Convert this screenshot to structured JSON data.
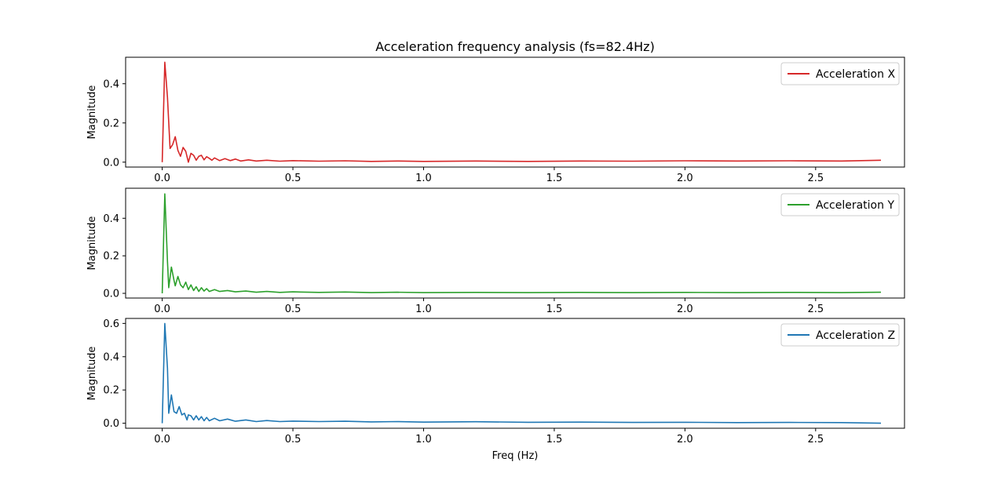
{
  "chart_data": {
    "type": "line",
    "title": "Acceleration frequency analysis (fs=82.4Hz)",
    "xlabel": "Freq (Hz)",
    "xlim": [
      -0.14,
      2.84
    ],
    "xticks": [
      "0.0",
      "0.5",
      "1.0",
      "1.5",
      "2.0",
      "2.5"
    ],
    "legend_position": "top-right",
    "grid": false,
    "subplots": [
      {
        "ylabel": "Magnitude",
        "ylim": [
          -0.025,
          0.535
        ],
        "yticks": [
          "0.0",
          "0.2",
          "0.4"
        ],
        "series": [
          {
            "name": "Acceleration X",
            "color": "#d62728",
            "points": [
              [
                0.0,
                0.0
              ],
              [
                0.01,
                0.51
              ],
              [
                0.02,
                0.33
              ],
              [
                0.03,
                0.07
              ],
              [
                0.04,
                0.09
              ],
              [
                0.05,
                0.13
              ],
              [
                0.06,
                0.06
              ],
              [
                0.07,
                0.03
              ],
              [
                0.08,
                0.075
              ],
              [
                0.09,
                0.055
              ],
              [
                0.1,
                0.0
              ],
              [
                0.11,
                0.045
              ],
              [
                0.12,
                0.035
              ],
              [
                0.13,
                0.01
              ],
              [
                0.14,
                0.03
              ],
              [
                0.15,
                0.035
              ],
              [
                0.16,
                0.012
              ],
              [
                0.17,
                0.028
              ],
              [
                0.18,
                0.02
              ],
              [
                0.19,
                0.01
              ],
              [
                0.2,
                0.022
              ],
              [
                0.22,
                0.008
              ],
              [
                0.24,
                0.018
              ],
              [
                0.26,
                0.008
              ],
              [
                0.28,
                0.016
              ],
              [
                0.3,
                0.006
              ],
              [
                0.33,
                0.012
              ],
              [
                0.36,
                0.006
              ],
              [
                0.4,
                0.01
              ],
              [
                0.45,
                0.005
              ],
              [
                0.5,
                0.008
              ],
              [
                0.6,
                0.005
              ],
              [
                0.7,
                0.007
              ],
              [
                0.8,
                0.004
              ],
              [
                0.9,
                0.006
              ],
              [
                1.0,
                0.004
              ],
              [
                1.2,
                0.006
              ],
              [
                1.4,
                0.004
              ],
              [
                1.6,
                0.006
              ],
              [
                1.8,
                0.005
              ],
              [
                2.0,
                0.007
              ],
              [
                2.2,
                0.006
              ],
              [
                2.4,
                0.007
              ],
              [
                2.6,
                0.006
              ],
              [
                2.75,
                0.01
              ]
            ]
          }
        ]
      },
      {
        "ylabel": "Magnitude",
        "ylim": [
          -0.025,
          0.56
        ],
        "yticks": [
          "0.0",
          "0.2",
          "0.4"
        ],
        "series": [
          {
            "name": "Acceleration Y",
            "color": "#2ca02c",
            "points": [
              [
                0.0,
                0.0
              ],
              [
                0.01,
                0.53
              ],
              [
                0.02,
                0.17
              ],
              [
                0.025,
                0.03
              ],
              [
                0.035,
                0.14
              ],
              [
                0.045,
                0.07
              ],
              [
                0.05,
                0.04
              ],
              [
                0.06,
                0.09
              ],
              [
                0.07,
                0.045
              ],
              [
                0.08,
                0.03
              ],
              [
                0.09,
                0.06
              ],
              [
                0.1,
                0.02
              ],
              [
                0.11,
                0.045
              ],
              [
                0.12,
                0.015
              ],
              [
                0.13,
                0.035
              ],
              [
                0.14,
                0.01
              ],
              [
                0.15,
                0.03
              ],
              [
                0.16,
                0.012
              ],
              [
                0.17,
                0.025
              ],
              [
                0.18,
                0.01
              ],
              [
                0.2,
                0.02
              ],
              [
                0.22,
                0.01
              ],
              [
                0.25,
                0.015
              ],
              [
                0.28,
                0.008
              ],
              [
                0.32,
                0.012
              ],
              [
                0.36,
                0.006
              ],
              [
                0.4,
                0.01
              ],
              [
                0.45,
                0.005
              ],
              [
                0.5,
                0.008
              ],
              [
                0.6,
                0.005
              ],
              [
                0.7,
                0.007
              ],
              [
                0.8,
                0.004
              ],
              [
                0.9,
                0.006
              ],
              [
                1.0,
                0.004
              ],
              [
                1.2,
                0.005
              ],
              [
                1.4,
                0.004
              ],
              [
                1.6,
                0.005
              ],
              [
                1.8,
                0.004
              ],
              [
                2.0,
                0.005
              ],
              [
                2.2,
                0.004
              ],
              [
                2.4,
                0.005
              ],
              [
                2.6,
                0.004
              ],
              [
                2.75,
                0.006
              ]
            ]
          }
        ]
      },
      {
        "ylabel": "Magnitude",
        "ylim": [
          -0.03,
          0.63
        ],
        "yticks": [
          "0.0",
          "0.2",
          "0.4",
          "0.6"
        ],
        "series": [
          {
            "name": "Acceleration Z",
            "color": "#1f77b4",
            "points": [
              [
                0.0,
                0.0
              ],
              [
                0.01,
                0.6
              ],
              [
                0.02,
                0.33
              ],
              [
                0.025,
                0.06
              ],
              [
                0.035,
                0.17
              ],
              [
                0.045,
                0.07
              ],
              [
                0.055,
                0.06
              ],
              [
                0.065,
                0.1
              ],
              [
                0.075,
                0.05
              ],
              [
                0.085,
                0.06
              ],
              [
                0.095,
                0.02
              ],
              [
                0.1,
                0.05
              ],
              [
                0.11,
                0.045
              ],
              [
                0.12,
                0.02
              ],
              [
                0.13,
                0.045
              ],
              [
                0.14,
                0.02
              ],
              [
                0.15,
                0.04
              ],
              [
                0.16,
                0.015
              ],
              [
                0.17,
                0.035
              ],
              [
                0.18,
                0.015
              ],
              [
                0.2,
                0.03
              ],
              [
                0.22,
                0.015
              ],
              [
                0.25,
                0.025
              ],
              [
                0.28,
                0.012
              ],
              [
                0.32,
                0.02
              ],
              [
                0.36,
                0.01
              ],
              [
                0.4,
                0.016
              ],
              [
                0.45,
                0.01
              ],
              [
                0.5,
                0.013
              ],
              [
                0.6,
                0.01
              ],
              [
                0.7,
                0.012
              ],
              [
                0.8,
                0.008
              ],
              [
                0.9,
                0.01
              ],
              [
                1.0,
                0.007
              ],
              [
                1.2,
                0.009
              ],
              [
                1.4,
                0.006
              ],
              [
                1.6,
                0.007
              ],
              [
                1.8,
                0.005
              ],
              [
                2.0,
                0.006
              ],
              [
                2.2,
                0.004
              ],
              [
                2.4,
                0.005
              ],
              [
                2.6,
                0.004
              ],
              [
                2.75,
                0.0
              ]
            ]
          }
        ]
      }
    ]
  }
}
